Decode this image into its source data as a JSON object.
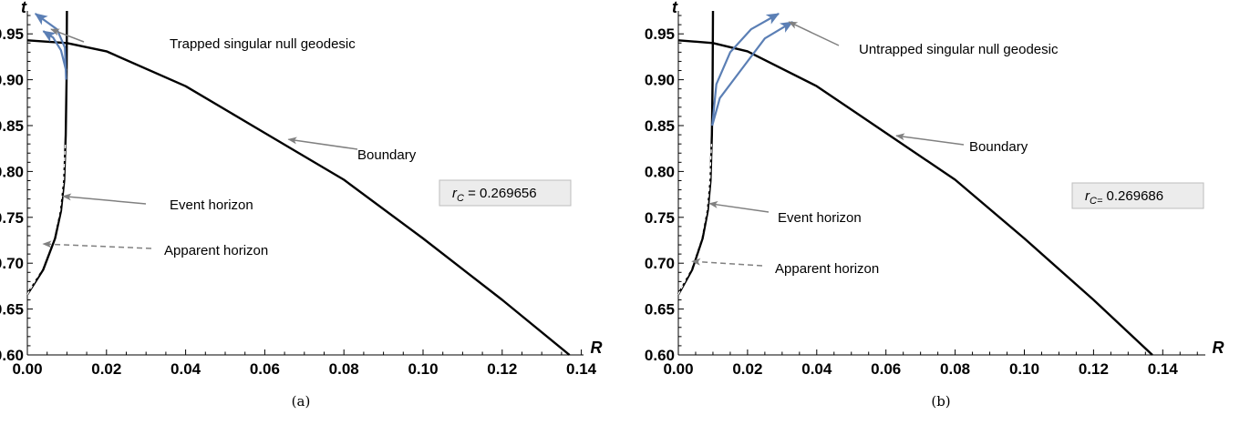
{
  "chart_data": [
    {
      "type": "line",
      "caption": "(a)",
      "xlabel": "R",
      "ylabel": "t",
      "xlim": [
        0,
        0.15
      ],
      "ylim": [
        0.6,
        0.975
      ],
      "xticks": [
        "0.00",
        "0.02",
        "0.04",
        "0.06",
        "0.08",
        "0.10",
        "0.12",
        "0.14"
      ],
      "yticks": [
        "0.60",
        "0.65",
        "0.70",
        "0.75",
        "0.80",
        "0.85",
        "0.90",
        "0.95"
      ],
      "rc": {
        "label": "r",
        "subscript": "C",
        "value_text": " = 0.269656"
      },
      "colors": {
        "curve": "#000000",
        "geodesic": "#5b7fb5",
        "arrow": "#808080"
      },
      "series": [
        {
          "key": "boundary",
          "points": [
            [
              0,
              0.943
            ],
            [
              0.01,
              0.94
            ],
            [
              0.02,
              0.931
            ],
            [
              0.04,
              0.893
            ],
            [
              0.06,
              0.842
            ],
            [
              0.08,
              0.791
            ],
            [
              0.1,
              0.727
            ],
            [
              0.12,
              0.66
            ],
            [
              0.137,
              0.6
            ]
          ]
        },
        {
          "key": "event_horizon",
          "points": [
            [
              0,
              0.666
            ],
            [
              0.004,
              0.693
            ],
            [
              0.007,
              0.727
            ],
            [
              0.0085,
              0.757
            ],
            [
              0.0093,
              0.79
            ],
            [
              0.0097,
              0.84
            ],
            [
              0.0099,
              0.9
            ],
            [
              0.01,
              0.975
            ]
          ]
        },
        {
          "key": "apparent_horizon",
          "dashed": true,
          "points": [
            [
              0,
              0.666
            ],
            [
              0.0035,
              0.693
            ],
            [
              0.0065,
              0.727
            ],
            [
              0.0082,
              0.757
            ],
            [
              0.0091,
              0.79
            ],
            [
              0.0096,
              0.83
            ]
          ]
        },
        {
          "key": "geodesic_1",
          "geodesic": true,
          "points": [
            [
              0.0098,
              0.9
            ],
            [
              0.0095,
              0.935
            ],
            [
              0.0075,
              0.955
            ],
            [
              0.002,
              0.972
            ]
          ]
        },
        {
          "key": "geodesic_2",
          "geodesic": true,
          "points": [
            [
              0.0098,
              0.91
            ],
            [
              0.0085,
              0.932
            ],
            [
              0.0065,
              0.946
            ],
            [
              0.004,
              0.953
            ]
          ]
        }
      ],
      "annotations": [
        {
          "text": "Trapped singular null geodesic",
          "point": [
            0.006,
            0.955
          ]
        },
        {
          "text": "Boundary",
          "point": [
            0.066,
            0.835
          ]
        },
        {
          "text": "Event horizon",
          "point": [
            0.009,
            0.773
          ]
        },
        {
          "text": "Apparent horizon",
          "point": [
            0.004,
            0.721
          ],
          "dashed": true
        }
      ]
    },
    {
      "type": "line",
      "caption": "(b)",
      "xlabel": "R",
      "ylabel": "t",
      "xlim": [
        0,
        0.15
      ],
      "ylim": [
        0.6,
        0.975
      ],
      "xticks": [
        "0.00",
        "0.02",
        "0.04",
        "0.06",
        "0.08",
        "0.10",
        "0.12",
        "0.14"
      ],
      "yticks": [
        "0.60",
        "0.65",
        "0.70",
        "0.75",
        "0.80",
        "0.85",
        "0.90",
        "0.95"
      ],
      "rc": {
        "label": "r",
        "subscript": "C=",
        "value_text": " 0.269686"
      },
      "colors": {
        "curve": "#000000",
        "geodesic": "#5b7fb5",
        "arrow": "#808080"
      },
      "series": [
        {
          "key": "boundary",
          "points": [
            [
              0,
              0.943
            ],
            [
              0.01,
              0.94
            ],
            [
              0.02,
              0.931
            ],
            [
              0.04,
              0.893
            ],
            [
              0.06,
              0.842
            ],
            [
              0.08,
              0.791
            ],
            [
              0.1,
              0.727
            ],
            [
              0.12,
              0.66
            ],
            [
              0.137,
              0.6
            ]
          ]
        },
        {
          "key": "event_horizon",
          "points": [
            [
              0,
              0.666
            ],
            [
              0.004,
              0.693
            ],
            [
              0.007,
              0.727
            ],
            [
              0.0085,
              0.757
            ],
            [
              0.0093,
              0.79
            ],
            [
              0.0097,
              0.84
            ],
            [
              0.0099,
              0.9
            ],
            [
              0.01,
              0.975
            ]
          ]
        },
        {
          "key": "apparent_horizon",
          "dashed": true,
          "points": [
            [
              0,
              0.666
            ],
            [
              0.0035,
              0.693
            ],
            [
              0.0065,
              0.727
            ],
            [
              0.0082,
              0.757
            ],
            [
              0.0091,
              0.79
            ],
            [
              0.0096,
              0.83
            ]
          ]
        },
        {
          "key": "geodesic_1",
          "geodesic": true,
          "points": [
            [
              0.0098,
              0.85
            ],
            [
              0.011,
              0.895
            ],
            [
              0.015,
              0.93
            ],
            [
              0.021,
              0.955
            ],
            [
              0.029,
              0.972
            ]
          ]
        },
        {
          "key": "geodesic_2",
          "geodesic": true,
          "points": [
            [
              0.0098,
              0.85
            ],
            [
              0.012,
              0.88
            ],
            [
              0.018,
              0.91
            ],
            [
              0.025,
              0.945
            ],
            [
              0.033,
              0.963
            ]
          ]
        }
      ],
      "annotations": [
        {
          "text": "Untrapped singular null geodesic",
          "point": [
            0.032,
            0.963
          ]
        },
        {
          "text": "Boundary",
          "point": [
            0.063,
            0.839
          ]
        },
        {
          "text": "Event horizon",
          "point": [
            0.009,
            0.765
          ]
        },
        {
          "text": "Apparent horizon",
          "point": [
            0.004,
            0.702
          ],
          "dashed": true
        }
      ]
    }
  ]
}
